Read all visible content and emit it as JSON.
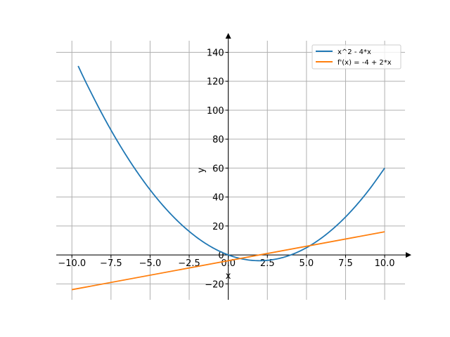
{
  "chart_data": {
    "type": "line",
    "xlabel": "x",
    "ylabel": "y",
    "xlim": [
      -11,
      11.3
    ],
    "ylim": [
      -31,
      148
    ],
    "grid": true,
    "legend_position": "top-right",
    "x_ticks": [
      -10,
      -7.5,
      -5,
      -2.5,
      0,
      2.5,
      5,
      7.5,
      10
    ],
    "x_tick_labels": [
      "−10.0",
      "−7.5",
      "−5.0",
      "−2.5",
      "0.0",
      "2.5",
      "5.0",
      "7.5",
      "10.0"
    ],
    "y_ticks": [
      -20,
      0,
      20,
      40,
      60,
      80,
      100,
      120,
      140
    ],
    "y_tick_labels": [
      "−20",
      "0",
      "20",
      "40",
      "60",
      "80",
      "100",
      "120",
      "140"
    ],
    "series": [
      {
        "name": "x^2 - 4*x",
        "color": "#1f77b4",
        "x": [
          -9.6,
          -9.0,
          -8.0,
          -7.0,
          -6.0,
          -5.0,
          -4.0,
          -3.0,
          -2.0,
          -1.0,
          0.0,
          1.0,
          2.0,
          3.0,
          4.0,
          5.0,
          6.0,
          7.0,
          8.0,
          9.0,
          10.0
        ],
        "y": [
          130.56,
          117,
          96,
          77,
          60,
          45,
          32,
          21,
          12,
          5,
          0,
          -3,
          -4,
          -3,
          0,
          5,
          12,
          21,
          32,
          45,
          60
        ]
      },
      {
        "name": "f'(x) = -4 + 2*x",
        "color": "#ff7f0e",
        "x": [
          -10,
          10
        ],
        "y": [
          -24,
          16
        ]
      }
    ]
  }
}
